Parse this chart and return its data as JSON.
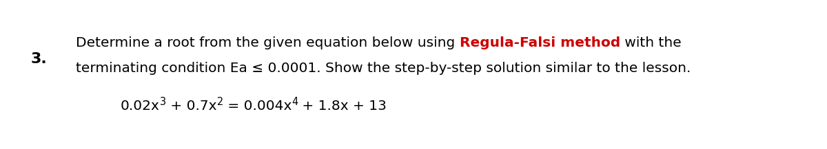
{
  "background_color": "#ffffff",
  "number": "3.",
  "number_fontsize": 16,
  "number_color": "#000000",
  "number_fontweight": "bold",
  "line1_parts": [
    {
      "text": "Determine a root from the given equation below using ",
      "color": "#000000",
      "weight": "normal"
    },
    {
      "text": "Regula-Falsi method",
      "color": "#cc0000",
      "weight": "bold"
    },
    {
      "text": " with the",
      "color": "#000000",
      "weight": "normal"
    }
  ],
  "line2_text": "terminating condition Ea ≤ 0.0001. Show the step-by-step solution similar to the lesson.",
  "line_fontsize": 14.5,
  "eq_segments": [
    {
      "text": "0.02x",
      "sup": false
    },
    {
      "text": "3",
      "sup": true
    },
    {
      "text": " + 0.7x",
      "sup": false
    },
    {
      "text": "2",
      "sup": true
    },
    {
      "text": " = 0.004x",
      "sup": false
    },
    {
      "text": "4",
      "sup": true
    },
    {
      "text": " + 1.8x + 13",
      "sup": false
    }
  ],
  "eq_fontsize": 14.5,
  "fontfamily": "DejaVu Sans"
}
